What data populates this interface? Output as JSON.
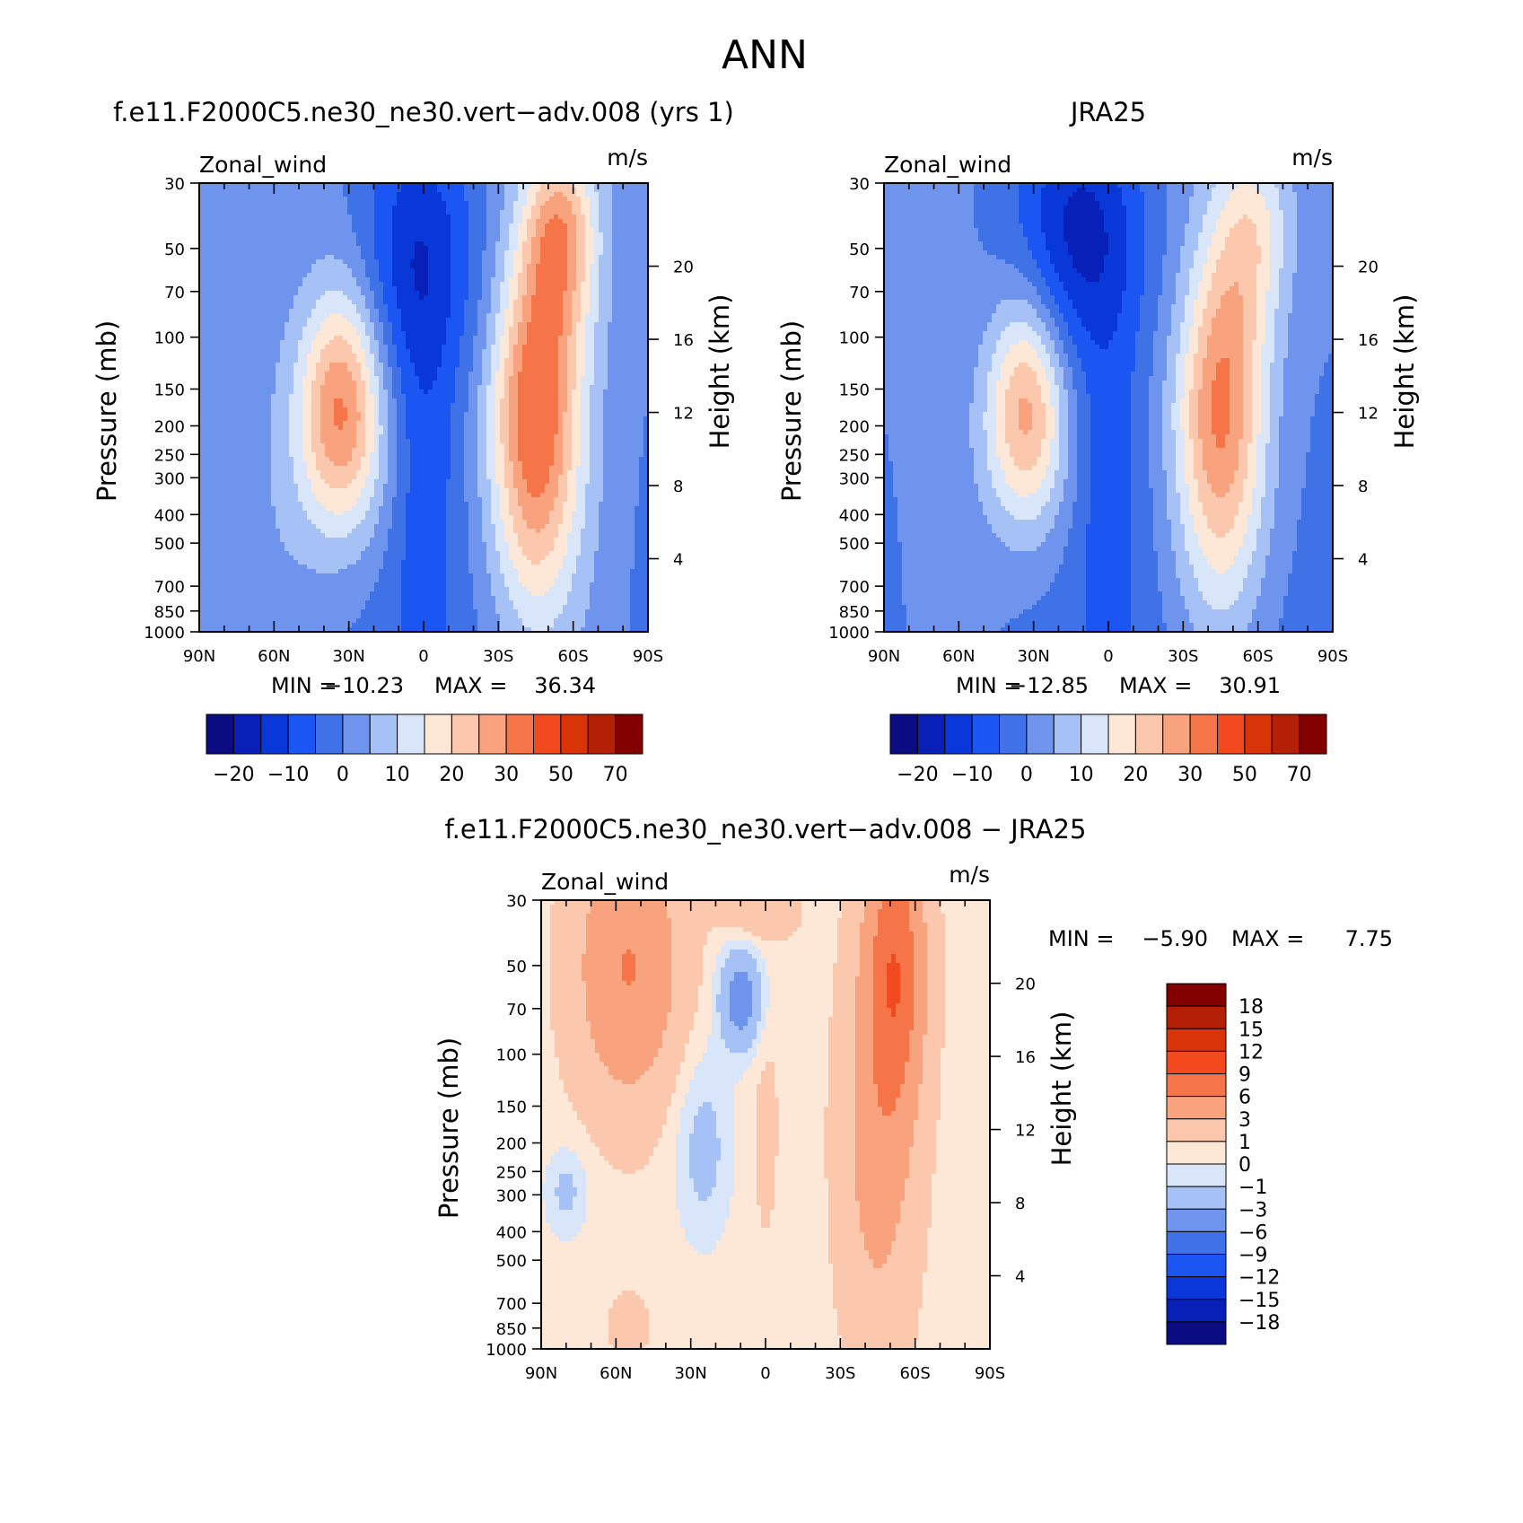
{
  "figure_title": "ANN",
  "chart_data": [
    {
      "id": "model",
      "type": "heatmap",
      "title": "f.e11.F2000C5.ne30_ne30.vert−adv.008 (yrs 1)",
      "left_label": "Zonal_wind",
      "right_label": "m/s",
      "xlabel": "",
      "ylabel": "Pressure (mb)",
      "ylabel_right": "Height (km)",
      "x_ticks": [
        "90N",
        "60N",
        "30N",
        "0",
        "30S",
        "60S",
        "90S"
      ],
      "x_range": [
        90,
        -90
      ],
      "y_ticks": [
        "30",
        "50",
        "70",
        "100",
        "150",
        "200",
        "250",
        "300",
        "400",
        "500",
        "700",
        "850",
        "1000"
      ],
      "y_range_mb": [
        1000,
        30
      ],
      "y_log": true,
      "right_ticks": [
        "4",
        "8",
        "12",
        "16",
        "20"
      ],
      "stats": {
        "min_label": "MIN =",
        "min": "−10.23",
        "max_label": "MAX =",
        "max": "36.34"
      },
      "features": [
        {
          "lat": 33,
          "p": 200,
          "value": 33,
          "kind": "NH subtropical jet"
        },
        {
          "lat": -45,
          "p": 200,
          "value": 36,
          "kind": "SH jet"
        },
        {
          "lat": 5,
          "p": 30,
          "value": -10,
          "kind": "tropical easterlies"
        }
      ],
      "colorbar": {
        "orientation": "horizontal",
        "labels": [
          "−20",
          "−10",
          "0",
          "10",
          "20",
          "30",
          "50",
          "70"
        ]
      }
    },
    {
      "id": "obs",
      "type": "heatmap",
      "title": "JRA25",
      "left_label": "Zonal_wind",
      "right_label": "m/s",
      "xlabel": "",
      "ylabel": "Pressure (mb)",
      "ylabel_right": "Height (km)",
      "x_ticks": [
        "90N",
        "60N",
        "30N",
        "0",
        "30S",
        "60S",
        "90S"
      ],
      "x_range": [
        90,
        -90
      ],
      "y_ticks": [
        "30",
        "50",
        "70",
        "100",
        "150",
        "200",
        "250",
        "300",
        "400",
        "500",
        "700",
        "850",
        "1000"
      ],
      "y_range_mb": [
        1000,
        30
      ],
      "y_log": true,
      "right_ticks": [
        "4",
        "8",
        "12",
        "16",
        "20"
      ],
      "stats": {
        "min_label": "MIN =",
        "min": "−12.85",
        "max_label": "MAX =",
        "max": "30.91"
      },
      "features": [
        {
          "lat": 33,
          "p": 200,
          "value": 29,
          "kind": "NH subtropical jet"
        },
        {
          "lat": -45,
          "p": 200,
          "value": 31,
          "kind": "SH jet"
        },
        {
          "lat": 15,
          "p": 30,
          "value": -12,
          "kind": "tropical easterlies"
        }
      ],
      "colorbar": {
        "orientation": "horizontal",
        "labels": [
          "−20",
          "−10",
          "0",
          "10",
          "20",
          "30",
          "50",
          "70"
        ]
      }
    },
    {
      "id": "diff",
      "type": "heatmap",
      "title": "f.e11.F2000C5.ne30_ne30.vert−adv.008 − JRA25",
      "left_label": "Zonal_wind",
      "right_label": "m/s",
      "xlabel": "",
      "ylabel": "Pressure (mb)",
      "ylabel_right": "Height (km)",
      "x_ticks": [
        "90N",
        "60N",
        "30N",
        "0",
        "30S",
        "60S",
        "90S"
      ],
      "x_range": [
        90,
        -90
      ],
      "y_ticks": [
        "30",
        "50",
        "70",
        "100",
        "150",
        "200",
        "250",
        "300",
        "400",
        "500",
        "700",
        "850",
        "1000"
      ],
      "y_range_mb": [
        1000,
        30
      ],
      "y_log": true,
      "right_ticks": [
        "4",
        "8",
        "12",
        "16",
        "20"
      ],
      "stats": {
        "min_label": "MIN =",
        "min": "−5.90",
        "max_label": "MAX =",
        "max": "7.75"
      },
      "features": [
        {
          "lat": 55,
          "p": 50,
          "value": 5,
          "kind": "NH polar positive"
        },
        {
          "lat": -52,
          "p": 50,
          "value": 7.5,
          "kind": "SH positive"
        },
        {
          "lat": 10,
          "p": 60,
          "value": -5,
          "kind": "tropical negative"
        }
      ],
      "colorbar": {
        "orientation": "vertical",
        "labels": [
          "18",
          "15",
          "12",
          "9",
          "6",
          "3",
          "1",
          "0",
          "−1",
          "−3",
          "−6",
          "−9",
          "−12",
          "−15",
          "−18"
        ]
      }
    }
  ]
}
